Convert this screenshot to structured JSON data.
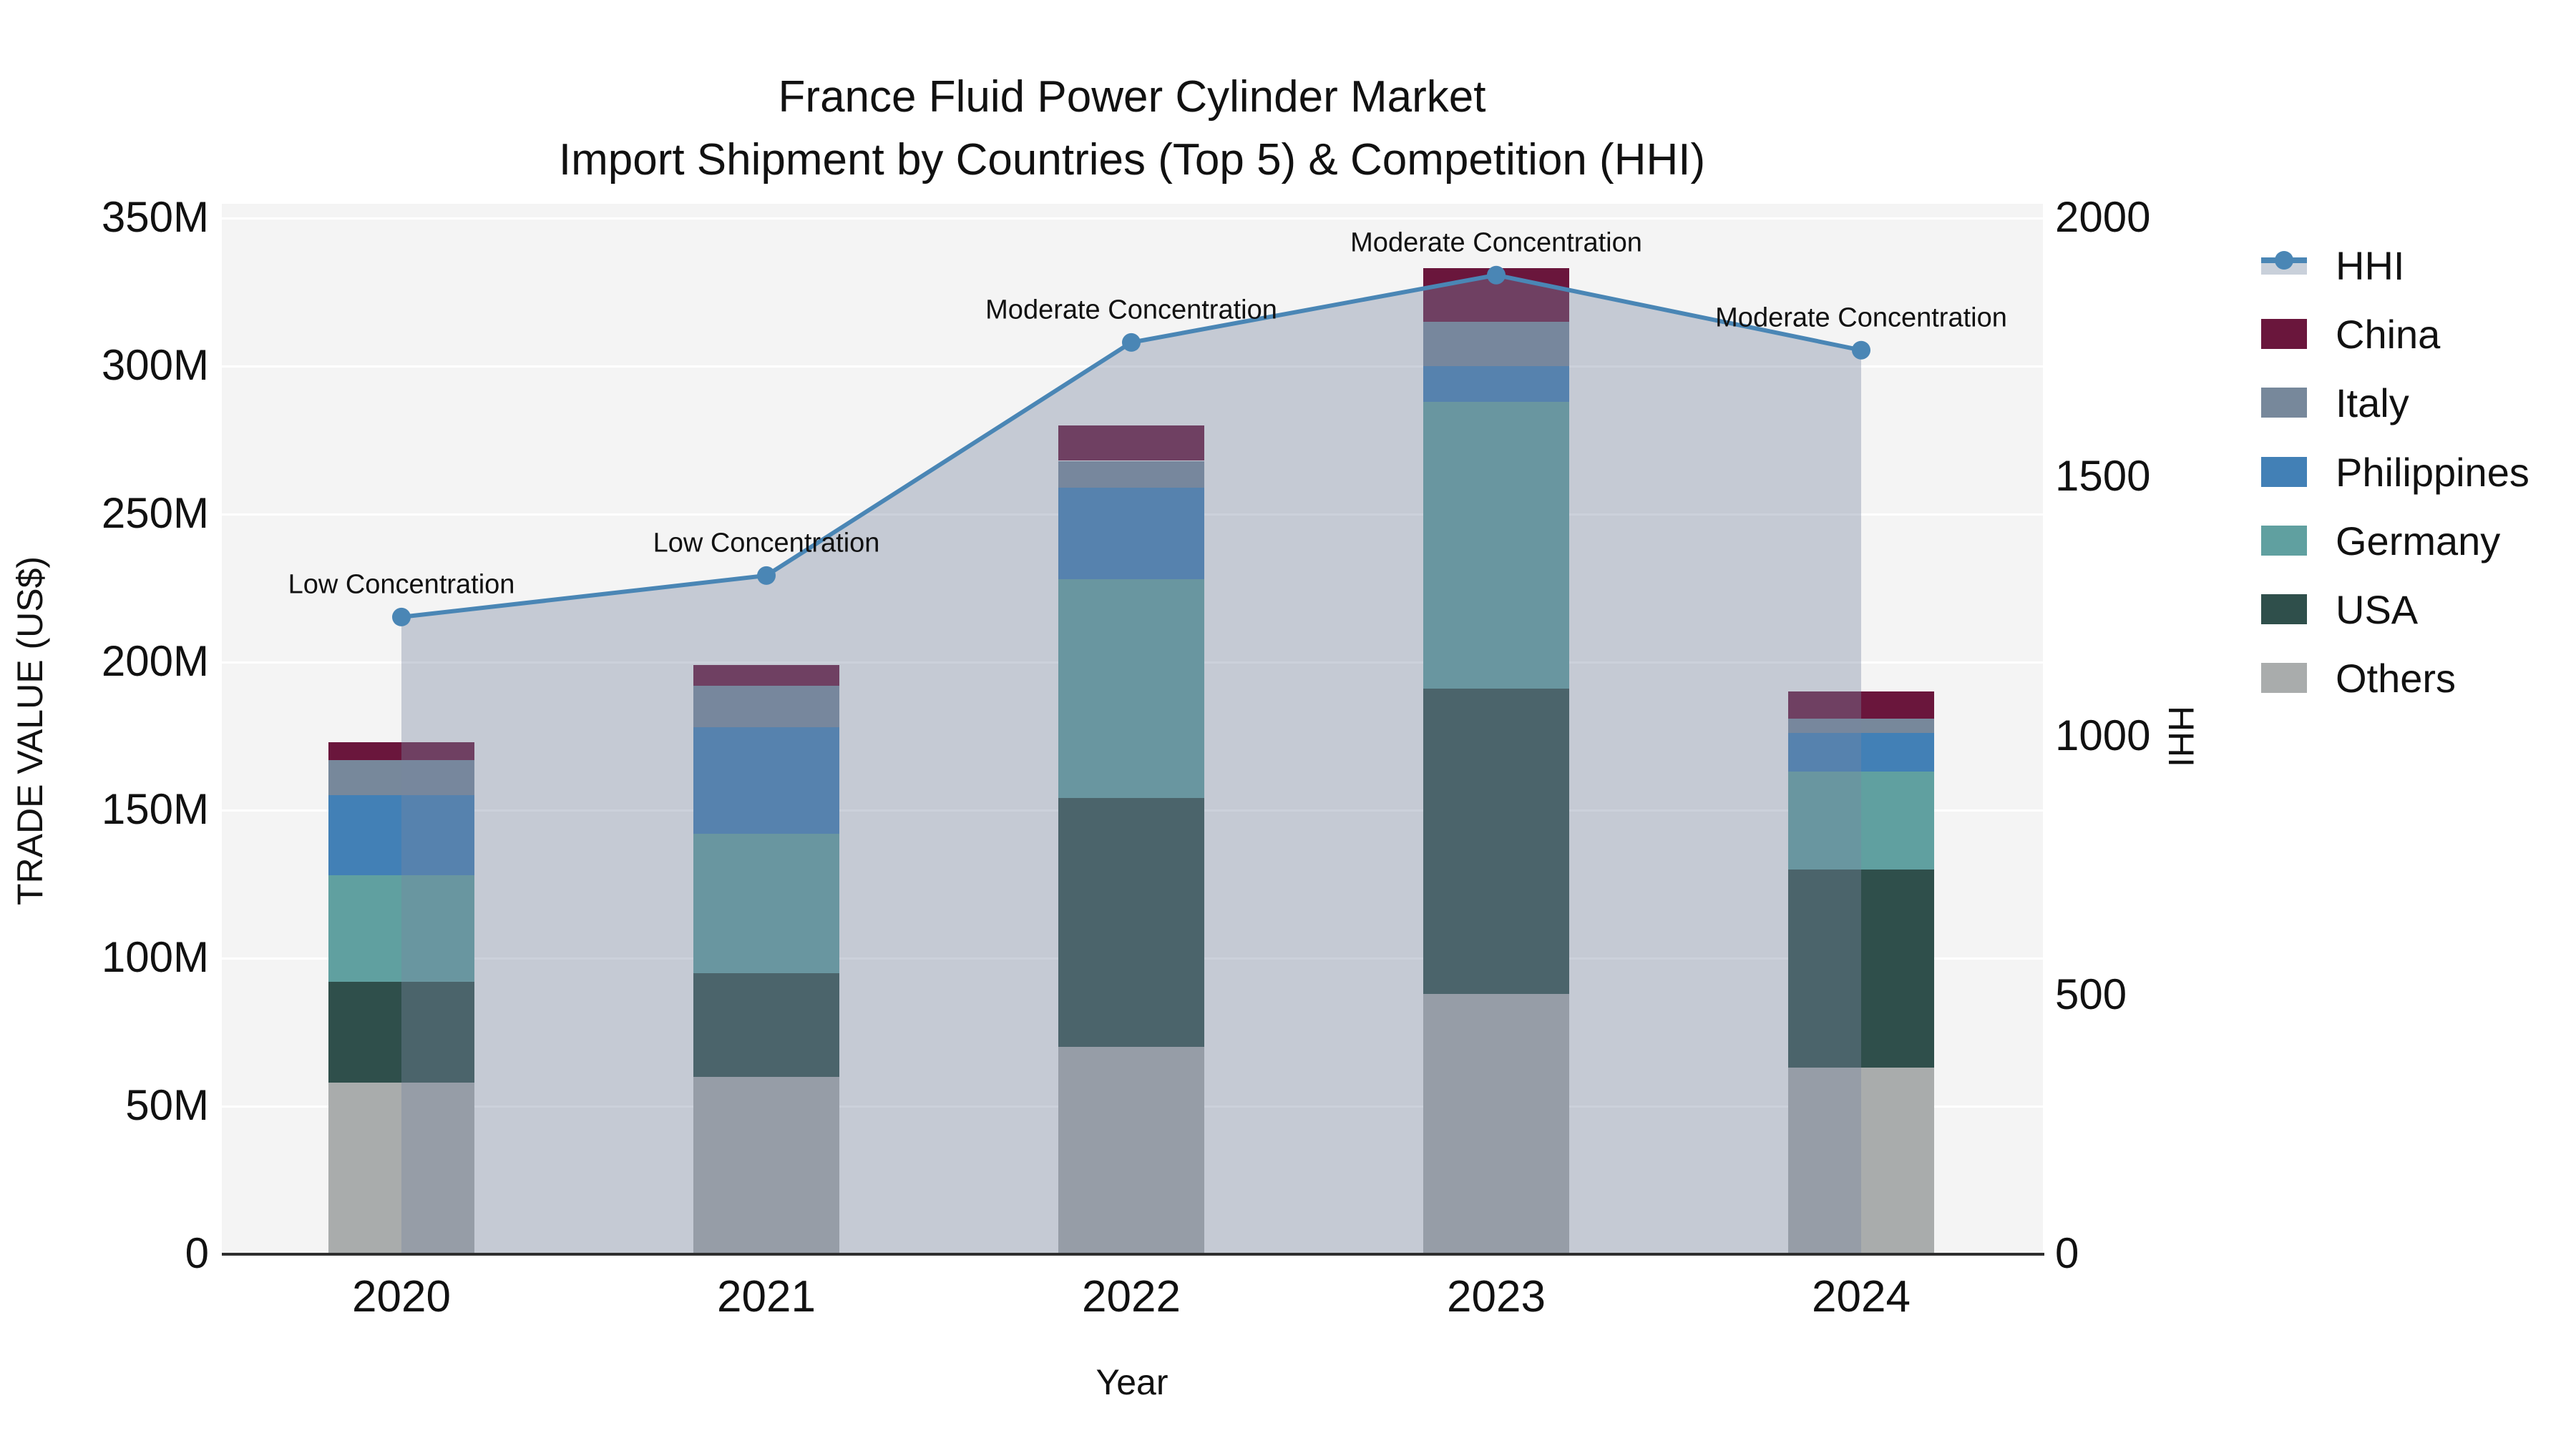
{
  "title": {
    "line1": "France Fluid Power Cylinder Market",
    "line2": "Import Shipment by Countries (Top 5) & Competition (HHI)"
  },
  "chart_data": {
    "type": "bar",
    "subtype": "stacked-bars-with-line-area-overlay",
    "categories": [
      "2020",
      "2021",
      "2022",
      "2023",
      "2024"
    ],
    "series": [
      {
        "name": "Others",
        "color": "#a9acac",
        "values": [
          58,
          60,
          70,
          88,
          63
        ]
      },
      {
        "name": "USA",
        "color": "#2f4f4b",
        "values": [
          34,
          35,
          84,
          103,
          67
        ]
      },
      {
        "name": "Germany",
        "color": "#60a0a0",
        "values": [
          36,
          47,
          74,
          97,
          33
        ]
      },
      {
        "name": "Philippines",
        "color": "#4280b6",
        "values": [
          27,
          36,
          31,
          12,
          13
        ]
      },
      {
        "name": "Italy",
        "color": "#77889b",
        "values": [
          12,
          14,
          9,
          15,
          5
        ]
      },
      {
        "name": "China",
        "color": "#6a163c",
        "values": [
          6,
          7,
          12,
          18,
          9
        ]
      }
    ],
    "bar_totals_M": [
      173,
      199,
      280,
      333,
      190
    ],
    "line_series": {
      "name": "HHI",
      "color": "#4a86b5",
      "area_color": "rgba(120,134,160,0.38)",
      "values": [
        1230,
        1310,
        1760,
        1890,
        1745
      ]
    },
    "annotations": [
      "Low Concentration",
      "Low Concentration",
      "Moderate Concentration",
      "Moderate Concentration",
      "Moderate Concentration"
    ],
    "xlabel": "Year",
    "ylabel_left": "TRADE VALUE (US$)",
    "ylabel_right": "HHI",
    "y_left_ticks": [
      "0",
      "50M",
      "100M",
      "150M",
      "200M",
      "250M",
      "300M",
      "350M"
    ],
    "y_left_max": 350,
    "y_right_ticks": [
      "0",
      "500",
      "1000",
      "1500",
      "2000"
    ],
    "y_right_max": 2000,
    "grid": true,
    "legend_position": "right",
    "legend_order": [
      "HHI",
      "China",
      "Italy",
      "Philippines",
      "Germany",
      "USA",
      "Others"
    ],
    "background_plot": "#f4f4f4",
    "background_figure": "#ffffff"
  }
}
